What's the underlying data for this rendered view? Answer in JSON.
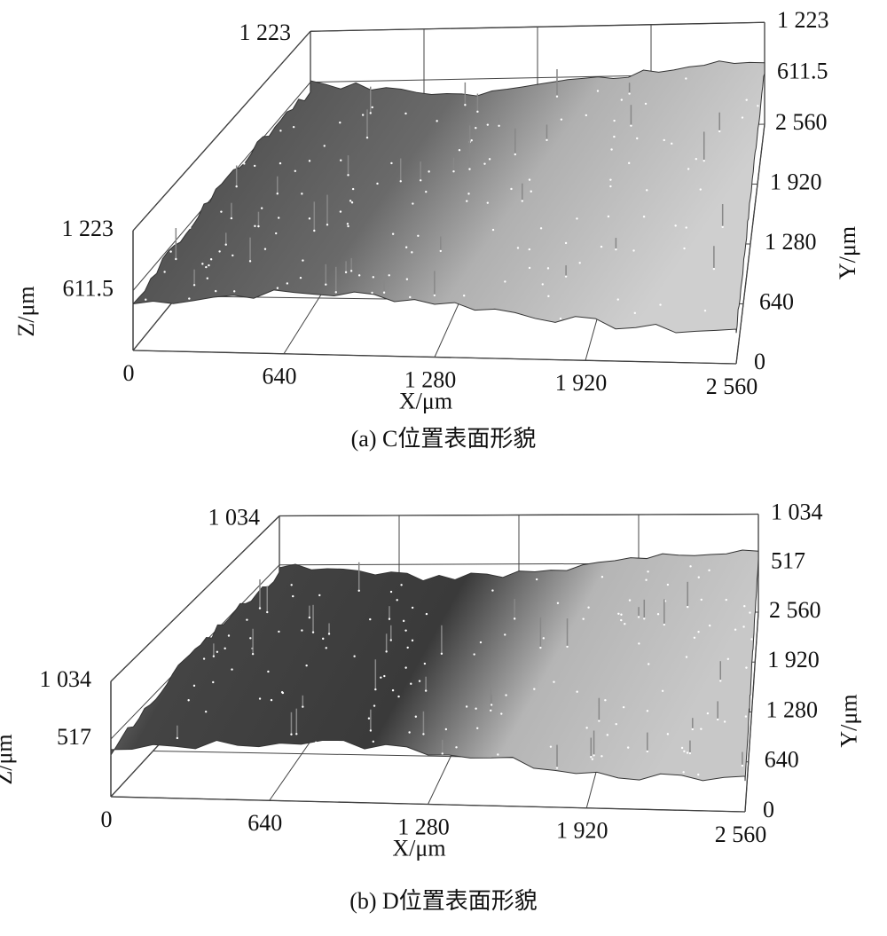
{
  "chart_data": [
    {
      "type": "surface",
      "caption": "(a) C位置表面形貌",
      "xlabel": "X/μm",
      "ylabel": "Y/μm",
      "zlabel": "Z/μm",
      "xticks": [
        0,
        640,
        {
          "value": 1280,
          "label": "1 280"
        },
        {
          "value": 1920,
          "label": "1 920"
        },
        {
          "value": 2560,
          "label": "2 560"
        }
      ],
      "yticks": [
        0,
        640,
        {
          "value": 1280,
          "label": "1 280"
        },
        {
          "value": 1920,
          "label": "1 920"
        },
        {
          "value": 2560,
          "label": "2 560"
        }
      ],
      "zticks": [
        611.5,
        {
          "value": 1223,
          "label": "1 223"
        }
      ]
    },
    {
      "type": "surface",
      "caption": "(b) D位置表面形貌",
      "xlabel": "X/μm",
      "ylabel": "Y/μm",
      "zlabel": "Z/μm",
      "xticks": [
        0,
        640,
        {
          "value": 1280,
          "label": "1 280"
        },
        {
          "value": 1920,
          "label": "1 920"
        },
        {
          "value": 2560,
          "label": "2 560"
        }
      ],
      "yticks": [
        0,
        640,
        {
          "value": 1280,
          "label": "1 280"
        },
        {
          "value": 1920,
          "label": "1 920"
        },
        {
          "value": 2560,
          "label": "2 560"
        }
      ],
      "zticks": [
        517,
        {
          "value": 1034,
          "label": "1 034"
        }
      ]
    }
  ]
}
